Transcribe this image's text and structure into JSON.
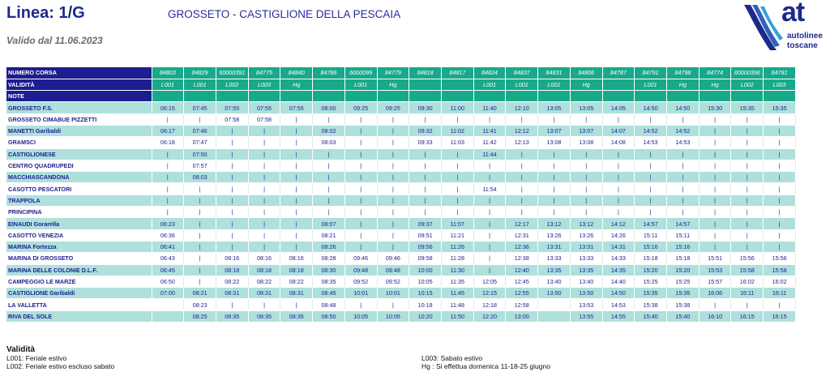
{
  "header": {
    "title": "Linea: 1/G",
    "route": "GROSSETO - CASTIGLIONE DELLA PESCAIA",
    "valid_from": "Valido dal 11.06.2023"
  },
  "logo": {
    "brand": "at",
    "line1": "autolinee",
    "line2": "toscane"
  },
  "table": {
    "labels": {
      "run": "NUMERO CORSA",
      "validity": "VALIDITÀ",
      "notes": "NOTE"
    },
    "runs": [
      "84803",
      "84829",
      "60000391",
      "84775",
      "84840",
      "84786",
      "6000099",
      "84779",
      "84818",
      "84817",
      "84824",
      "84837",
      "84831",
      "84806",
      "84787",
      "84791",
      "84798",
      "84774",
      "60000396",
      "84781"
    ],
    "validity": [
      "L001",
      "L001",
      "L002",
      "L003",
      "Hg",
      "",
      "L001",
      "Hg",
      "",
      "",
      "L001",
      "L001",
      "L001",
      "Hg",
      "",
      "L001",
      "Hg",
      "Hg",
      "L002",
      "L003"
    ],
    "stops": [
      {
        "name": "GROSSETO F.S.",
        "times": [
          "06:15",
          "07:45",
          "07:55",
          "07:55",
          "07:55",
          "08:00",
          "09:25",
          "09:25",
          "09:30",
          "11:00",
          "11:40",
          "12:10",
          "13:05",
          "13:05",
          "14:05",
          "14:50",
          "14:50",
          "15:30",
          "15:35",
          "15:35"
        ]
      },
      {
        "name": "GROSSETO CIMABUE PIZZETTI",
        "times": [
          "|",
          "|",
          "07:58",
          "07:58",
          "|",
          "|",
          "|",
          "|",
          "|",
          "|",
          "|",
          "|",
          "|",
          "|",
          "|",
          "|",
          "|",
          "|",
          "|",
          "|"
        ]
      },
      {
        "name": "MANETTI Garibaldi",
        "times": [
          "06:17",
          "07:46",
          "|",
          "|",
          "|",
          "08:02",
          "|",
          "|",
          "09:32",
          "11:02",
          "11:41",
          "12:12",
          "13:07",
          "13:07",
          "14:07",
          "14:52",
          "14:52",
          "|",
          "|",
          "|"
        ]
      },
      {
        "name": "GRAMSCI",
        "times": [
          "06:18",
          "07:47",
          "|",
          "|",
          "|",
          "08:03",
          "|",
          "|",
          "09:33",
          "11:03",
          "11:42",
          "12:13",
          "13:08",
          "13:08",
          "14:08",
          "14:53",
          "14:53",
          "|",
          "|",
          "|"
        ]
      },
      {
        "name": "CASTIGLIONESE",
        "times": [
          "|",
          "07:50",
          "|",
          "|",
          "|",
          "|",
          "|",
          "|",
          "|",
          "|",
          "11:44",
          "|",
          "|",
          "|",
          "|",
          "|",
          "|",
          "|",
          "|",
          "|"
        ]
      },
      {
        "name": "CENTRO QUADRUPEDI",
        "times": [
          "|",
          "07:57",
          "|",
          "|",
          "|",
          "|",
          "|",
          "|",
          "|",
          "|",
          "|",
          "|",
          "|",
          "|",
          "|",
          "|",
          "|",
          "|",
          "|",
          "|"
        ]
      },
      {
        "name": "MACCHIASCANDONA",
        "times": [
          "|",
          "08:03",
          "|",
          "|",
          "|",
          "|",
          "|",
          "|",
          "|",
          "|",
          "|",
          "|",
          "|",
          "|",
          "|",
          "|",
          "|",
          "|",
          "|",
          "|"
        ]
      },
      {
        "name": "CASOTTO PESCATORI",
        "times": [
          "|",
          "|",
          "|",
          "|",
          "|",
          "|",
          "|",
          "|",
          "|",
          "|",
          "11:54",
          "|",
          "|",
          "|",
          "|",
          "|",
          "|",
          "|",
          "|",
          "|"
        ]
      },
      {
        "name": "TRAPPOLA",
        "times": [
          "|",
          "|",
          "|",
          "|",
          "|",
          "|",
          "|",
          "|",
          "|",
          "|",
          "|",
          "|",
          "|",
          "|",
          "|",
          "|",
          "|",
          "|",
          "|",
          "|"
        ]
      },
      {
        "name": "PRINCIPINA",
        "times": [
          "|",
          "|",
          "|",
          "|",
          "|",
          "|",
          "|",
          "|",
          "|",
          "|",
          "|",
          "|",
          "|",
          "|",
          "|",
          "|",
          "|",
          "|",
          "|",
          "|"
        ]
      },
      {
        "name": "EINAUDI Gorarella",
        "times": [
          "06:23",
          "|",
          "|",
          "|",
          "|",
          "08:07",
          "|",
          "|",
          "09:37",
          "11:07",
          "|",
          "12:17",
          "13:12",
          "13:12",
          "14:12",
          "14:57",
          "14:57",
          "|",
          "|",
          "|"
        ]
      },
      {
        "name": "CASOTTO VENEZIA",
        "times": [
          "06:36",
          "|",
          "|",
          "|",
          "|",
          "08:21",
          "|",
          "|",
          "09:51",
          "11:21",
          "|",
          "12:31",
          "13:26",
          "13:26",
          "14:26",
          "15:11",
          "15:11",
          "|",
          "|",
          "|"
        ]
      },
      {
        "name": "MARINA Fortezza",
        "times": [
          "06:41",
          "|",
          "|",
          "|",
          "|",
          "08:26",
          "|",
          "|",
          "09:56",
          "11:26",
          "|",
          "12:36",
          "13:31",
          "13:31",
          "14:31",
          "15:16",
          "15:16",
          "|",
          "|",
          "|"
        ]
      },
      {
        "name": "MARINA DI GROSSETO",
        "times": [
          "06:43",
          "|",
          "08:16",
          "08:16",
          "08:16",
          "08:28",
          "09:46",
          "09:46",
          "09:58",
          "11:28",
          "|",
          "12:38",
          "13:33",
          "13:33",
          "14:33",
          "15:18",
          "15:18",
          "15:51",
          "15:56",
          "15:56"
        ]
      },
      {
        "name": "MARINA DELLE COLONIE D.L.F.",
        "times": [
          "06:45",
          "|",
          "08:18",
          "08:18",
          "08:18",
          "08:30",
          "09:48",
          "09:48",
          "10:00",
          "11:30",
          "|",
          "12:40",
          "13:35",
          "13:35",
          "14:35",
          "15:20",
          "15:20",
          "15:53",
          "15:58",
          "15:58"
        ]
      },
      {
        "name": "CAMPEGGIO LE MARZE",
        "times": [
          "06:50",
          "|",
          "08:22",
          "08:22",
          "08:22",
          "08:35",
          "09:52",
          "09:52",
          "10:05",
          "11:35",
          "12:05",
          "12:45",
          "13:40",
          "13:40",
          "14:40",
          "15:25",
          "15:25",
          "15:57",
          "16:02",
          "16:02"
        ]
      },
      {
        "name": "CASTIGLIONE Garibaldi",
        "times": [
          "07:00",
          "08:21",
          "08:31",
          "08:31",
          "08:31",
          "08:45",
          "10:01",
          "10:01",
          "10:15",
          "11:45",
          "12:15",
          "12:55",
          "13:50",
          "13:50",
          "14:50",
          "15:35",
          "15:35",
          "16:06",
          "16:11",
          "16:11"
        ]
      },
      {
        "name": "LA VALLETTA",
        "times": [
          "",
          "08:23",
          "|",
          "|",
          "|",
          "08:48",
          "|",
          "|",
          "10:18",
          "11:48",
          "12:18",
          "12:58",
          "",
          "13:53",
          "14:53",
          "15:38",
          "15:38",
          "|",
          "|",
          "|"
        ]
      },
      {
        "name": "RIVA DEL SOLE",
        "times": [
          "",
          "08:25",
          "08:35",
          "08:35",
          "08:35",
          "08:50",
          "10:05",
          "10:05",
          "10:20",
          "11:50",
          "12:20",
          "13:00",
          "",
          "13:55",
          "14:55",
          "15:40",
          "15:40",
          "16:10",
          "16:15",
          "16:15"
        ]
      }
    ]
  },
  "legend": {
    "title": "Validità",
    "items": [
      "L001: Feriale estivo",
      "L002: Feriale estivo escluso sabato",
      "L003: Sabato estivo",
      "Hg   : Si effettua domenica 11-18-25 giugno"
    ]
  },
  "colors": {
    "navy": "#1d1d8f",
    "teal": "#17a98a",
    "row_tint": "#aee0dc"
  }
}
